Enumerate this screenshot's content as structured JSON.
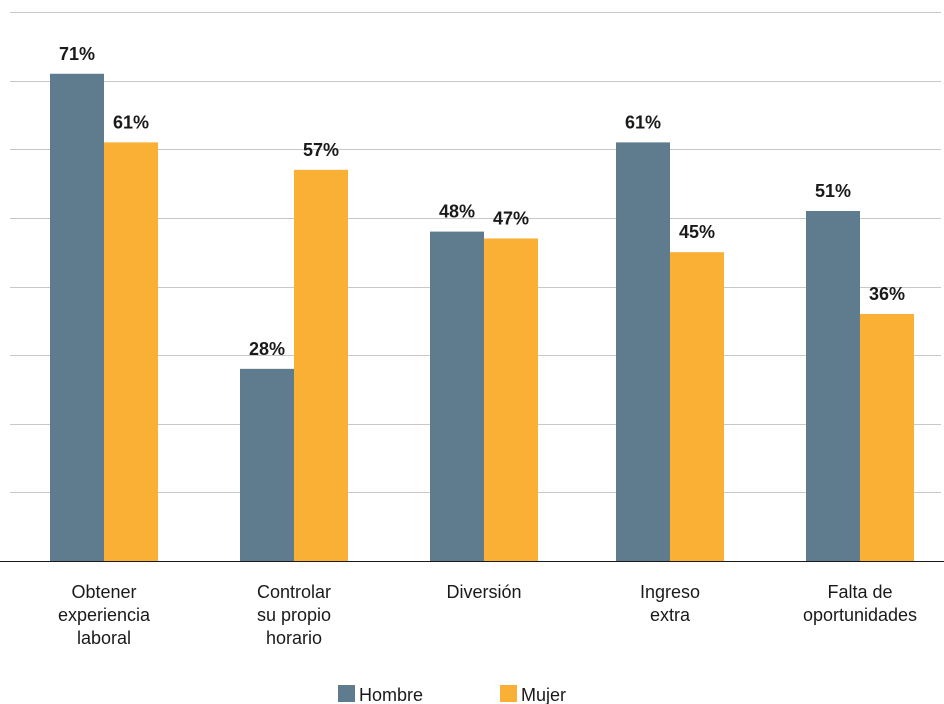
{
  "chart_data": {
    "type": "bar",
    "categories": [
      [
        "Obtener",
        "experiencia",
        "laboral"
      ],
      [
        "Controlar",
        "su propio",
        "horario"
      ],
      [
        "Diversión"
      ],
      [
        "Ingreso",
        "extra"
      ],
      [
        "Falta de",
        "oportunidades"
      ]
    ],
    "series": [
      {
        "name": "Hombre",
        "values": [
          71,
          28,
          48,
          61,
          51
        ],
        "color": "#5f7c8f"
      },
      {
        "name": "Mujer",
        "values": [
          61,
          57,
          47,
          45,
          36
        ],
        "color": "#f9b035"
      }
    ],
    "value_suffix": "%",
    "ylim": [
      0,
      80
    ],
    "grid": true,
    "legend": "bottom-center",
    "title": "",
    "xlabel": "",
    "ylabel": ""
  }
}
